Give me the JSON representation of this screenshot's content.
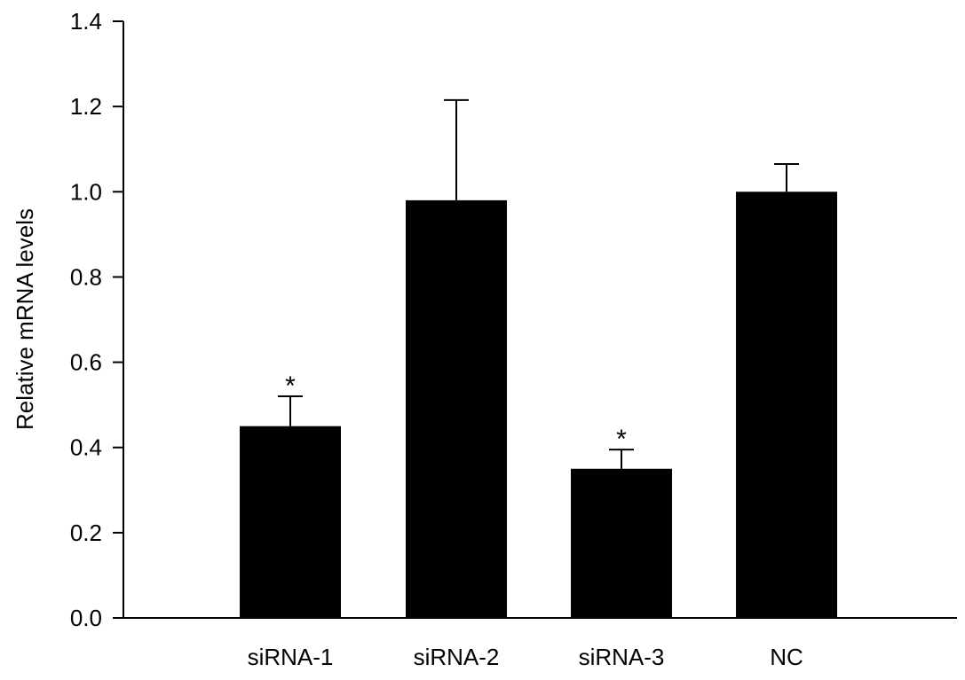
{
  "chart_data": {
    "type": "bar",
    "title": "",
    "xlabel": "",
    "ylabel": "Relative mRNA levels",
    "categories": [
      "siRNA-1",
      "siRNA-2",
      "siRNA-3",
      "NC"
    ],
    "values": [
      0.45,
      0.98,
      0.35,
      1.0
    ],
    "error": [
      0.07,
      0.235,
      0.045,
      0.065
    ],
    "significance": [
      "*",
      "",
      "*",
      ""
    ],
    "ylim": [
      0,
      1.4
    ],
    "yticks": [
      "0.0",
      "0.2",
      "0.4",
      "0.6",
      "0.8",
      "1.0",
      "1.2",
      "1.4"
    ],
    "bar_color": "#000000",
    "grid": false,
    "legend": "none"
  }
}
